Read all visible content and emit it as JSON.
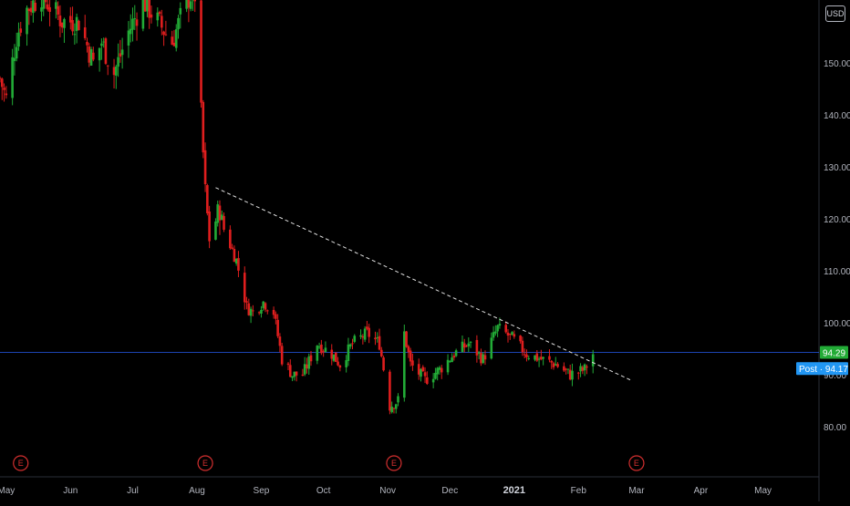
{
  "currency": "USD",
  "colors": {
    "up": "#26a69a",
    "up_candle": "#22ab36",
    "down": "#e01e1e",
    "last_price_badge": "#22ab36",
    "post_badge": "#2196f3",
    "event_marker": "#d32f2f",
    "trendline": "#e0e0e0",
    "price_line": "#2962ff",
    "axis_text": "#b2b5be",
    "background": "#000000"
  },
  "price_badges": {
    "last": "94.29",
    "post_label": "Post",
    "post_value": "94.17"
  },
  "event_markers": [
    {
      "label": "E",
      "date": "2020-05-08"
    },
    {
      "label": "E",
      "date": "2020-08-05"
    },
    {
      "label": "E",
      "date": "2020-11-04"
    },
    {
      "label": "E",
      "date": "2021-03-01"
    }
  ],
  "chart_data": {
    "type": "candlestick",
    "title": "",
    "xlabel": "",
    "ylabel": "",
    "y_tick_labels": [
      "80.00",
      "90.00",
      "100.00",
      "110.00",
      "120.00",
      "130.00",
      "140.00",
      "150.00"
    ],
    "y_ticks": [
      80,
      90,
      100,
      110,
      120,
      130,
      140,
      150
    ],
    "ylim": [
      74,
      163
    ],
    "x_ticks": [
      {
        "label": "May",
        "date": "2020-05-01"
      },
      {
        "label": "Jun",
        "date": "2020-06-01"
      },
      {
        "label": "Jul",
        "date": "2020-07-01"
      },
      {
        "label": "Aug",
        "date": "2020-08-01"
      },
      {
        "label": "Sep",
        "date": "2020-09-01"
      },
      {
        "label": "Oct",
        "date": "2020-10-01"
      },
      {
        "label": "Nov",
        "date": "2020-11-01"
      },
      {
        "label": "Dec",
        "date": "2020-12-01"
      },
      {
        "label": "2021",
        "date": "2021-01-01",
        "bold": true
      },
      {
        "label": "Feb",
        "date": "2021-02-01"
      },
      {
        "label": "Mar",
        "date": "2021-03-01"
      },
      {
        "label": "Apr",
        "date": "2021-04-01"
      },
      {
        "label": "May",
        "date": "2021-05-01"
      }
    ],
    "xlim": [
      "2020-04-28",
      "2021-05-28"
    ],
    "close_path": [
      [
        "2020-04-28",
        147
      ],
      [
        "2020-05-01",
        143
      ],
      [
        "2020-05-06",
        155
      ],
      [
        "2020-05-10",
        160
      ],
      [
        "2020-05-18",
        163
      ],
      [
        "2020-05-28",
        158
      ],
      [
        "2020-06-05",
        158
      ],
      [
        "2020-06-12",
        150
      ],
      [
        "2020-06-16",
        154
      ],
      [
        "2020-06-22",
        148
      ],
      [
        "2020-06-29",
        156
      ],
      [
        "2020-07-06",
        162
      ],
      [
        "2020-07-13",
        158
      ],
      [
        "2020-07-20",
        154
      ],
      [
        "2020-07-27",
        162
      ],
      [
        "2020-07-29",
        163
      ],
      [
        "2020-07-31",
        163
      ],
      [
        "2020-08-03",
        140
      ],
      [
        "2020-08-05",
        125
      ],
      [
        "2020-08-07",
        116
      ],
      [
        "2020-08-12",
        122
      ],
      [
        "2020-08-14",
        118
      ],
      [
        "2020-08-20",
        112
      ],
      [
        "2020-08-25",
        103
      ],
      [
        "2020-08-28",
        102
      ],
      [
        "2020-09-02",
        104
      ],
      [
        "2020-09-07",
        102
      ],
      [
        "2020-09-11",
        93
      ],
      [
        "2020-09-16",
        90
      ],
      [
        "2020-09-21",
        90
      ],
      [
        "2020-09-28",
        96
      ],
      [
        "2020-10-05",
        94
      ],
      [
        "2020-10-09",
        92
      ],
      [
        "2020-10-15",
        96
      ],
      [
        "2020-10-22",
        98
      ],
      [
        "2020-10-28",
        96
      ],
      [
        "2020-11-02",
        84
      ],
      [
        "2020-11-06",
        85
      ],
      [
        "2020-11-09",
        98
      ],
      [
        "2020-11-12",
        92
      ],
      [
        "2020-11-19",
        89
      ],
      [
        "2020-11-26",
        91
      ],
      [
        "2020-12-03",
        94
      ],
      [
        "2020-12-10",
        96
      ],
      [
        "2020-12-17",
        93
      ],
      [
        "2020-12-24",
        99
      ],
      [
        "2020-12-31",
        97
      ],
      [
        "2021-01-07",
        94
      ],
      [
        "2021-01-14",
        93
      ],
      [
        "2021-01-21",
        92
      ],
      [
        "2021-01-28",
        90
      ],
      [
        "2021-02-04",
        91
      ],
      [
        "2021-02-08",
        94
      ]
    ],
    "trendline": {
      "style": "dashed",
      "start": [
        "2020-08-10",
        126
      ],
      "end": [
        "2021-02-26",
        89
      ]
    },
    "current_price": 94.29,
    "post_market_price": 94.17,
    "grid": false
  }
}
